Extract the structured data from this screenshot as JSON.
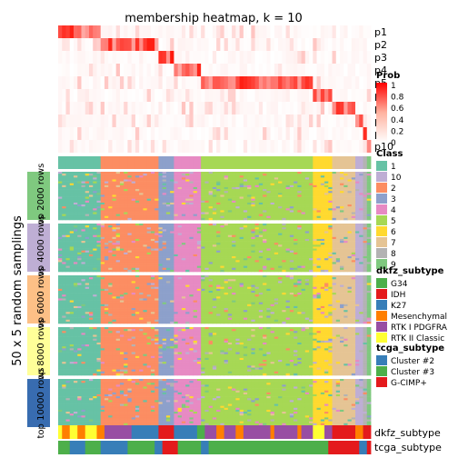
{
  "chart_data": {
    "type": "heatmap",
    "title": "membership heatmap, k = 10",
    "ylabel": "50 x 5 random samplings",
    "membership_rows": [
      "p1",
      "p2",
      "p3",
      "p4",
      "p5",
      "p6",
      "p7",
      "p8",
      "p9",
      "p10"
    ],
    "row_groups": [
      "top 2000 rows",
      "top 4000 rows",
      "top 6000 rows",
      "top 8000 rows",
      "top 10000 rows"
    ],
    "row_group_colors": [
      "#7fc97f",
      "#beaed4",
      "#fdc086",
      "#ffff99",
      "#386cb0"
    ],
    "annotation_rows": [
      "dkfz_subtype",
      "tcga_subtype"
    ],
    "legends": {
      "prob": {
        "title": "Prob",
        "ticks": [
          "1",
          "0.8",
          "0.6",
          "0.4",
          "0.2",
          "0"
        ],
        "color_low": "#ffffff",
        "color_high": "#ff0000"
      },
      "class": {
        "title": "Class",
        "items": [
          {
            "label": "1",
            "color": "#66c2a5"
          },
          {
            "label": "10",
            "color": "#beaed4"
          },
          {
            "label": "2",
            "color": "#fc8d62"
          },
          {
            "label": "3",
            "color": "#8da0cb"
          },
          {
            "label": "4",
            "color": "#e78ac3"
          },
          {
            "label": "5",
            "color": "#a6d854"
          },
          {
            "label": "6",
            "color": "#ffd92f"
          },
          {
            "label": "7",
            "color": "#e5c494"
          },
          {
            "label": "8",
            "color": "#b3b3b3"
          },
          {
            "label": "9",
            "color": "#7fc97f"
          }
        ]
      },
      "dkfz_subtype": {
        "title": "dkfz_subtype",
        "items": [
          {
            "label": "G34",
            "color": "#4daf4a"
          },
          {
            "label": "IDH",
            "color": "#e41a1c"
          },
          {
            "label": "K27",
            "color": "#377eb8"
          },
          {
            "label": "Mesenchymal",
            "color": "#ff7f00"
          },
          {
            "label": "RTK I PDGFRA",
            "color": "#984ea3"
          },
          {
            "label": "RTK II Classic",
            "color": "#ffff33"
          }
        ]
      },
      "tcga_subtype": {
        "title": "tcga_subtype",
        "items": [
          {
            "label": "Cluster #2",
            "color": "#377eb8"
          },
          {
            "label": "Cluster #3",
            "color": "#4daf4a"
          },
          {
            "label": "G-CIMP+",
            "color": "#e41a1c"
          }
        ]
      }
    },
    "column_classes": [
      {
        "class": "1",
        "n": 11
      },
      {
        "class": "2",
        "n": 15
      },
      {
        "class": "3",
        "n": 4
      },
      {
        "class": "4",
        "n": 7
      },
      {
        "class": "5",
        "n": 29
      },
      {
        "class": "6",
        "n": 5
      },
      {
        "class": "7",
        "n": 6
      },
      {
        "class": "10",
        "n": 2
      },
      {
        "class": "8",
        "n": 1
      },
      {
        "class": "9",
        "n": 1
      }
    ],
    "membership_peak_by_class": [
      "p1",
      "p2",
      "p3",
      "p4",
      "p5",
      "p6",
      "p7",
      "p8",
      "p9",
      "p10"
    ],
    "dkfz_blocks": [
      {
        "subtype": "RTK II Classic",
        "n": 1
      },
      {
        "subtype": "Mesenchymal",
        "n": 2
      },
      {
        "subtype": "RTK II Classic",
        "n": 2
      },
      {
        "subtype": "Mesenchymal",
        "n": 2
      },
      {
        "subtype": "RTK II Classic",
        "n": 3
      },
      {
        "subtype": "Mesenchymal",
        "n": 2
      },
      {
        "subtype": "RTK I PDGFRA",
        "n": 7
      },
      {
        "subtype": "K27",
        "n": 7
      },
      {
        "subtype": "IDH",
        "n": 4
      },
      {
        "subtype": "K27",
        "n": 6
      },
      {
        "subtype": "G34",
        "n": 2
      },
      {
        "subtype": "RTK I PDGFRA",
        "n": 3
      },
      {
        "subtype": "Mesenchymal",
        "n": 2
      },
      {
        "subtype": "RTK I PDGFRA",
        "n": 3
      },
      {
        "subtype": "Mesenchymal",
        "n": 2
      },
      {
        "subtype": "RTK I PDGFRA",
        "n": 7
      },
      {
        "subtype": "Mesenchymal",
        "n": 1
      },
      {
        "subtype": "RTK I PDGFRA",
        "n": 6
      },
      {
        "subtype": "Mesenchymal",
        "n": 1
      },
      {
        "subtype": "RTK I PDGFRA",
        "n": 3
      },
      {
        "subtype": "RTK II Classic",
        "n": 3
      },
      {
        "subtype": "RTK I PDGFRA",
        "n": 2
      },
      {
        "subtype": "IDH",
        "n": 6
      },
      {
        "subtype": "Mesenchymal",
        "n": 2
      },
      {
        "subtype": "IDH",
        "n": 2
      }
    ],
    "tcga_blocks": [
      {
        "subtype": "Cluster #3",
        "n": 3
      },
      {
        "subtype": "Cluster #2",
        "n": 4
      },
      {
        "subtype": "Cluster #3",
        "n": 4
      },
      {
        "subtype": "Cluster #2",
        "n": 7
      },
      {
        "subtype": "Cluster #3",
        "n": 7
      },
      {
        "subtype": "Cluster #2",
        "n": 2
      },
      {
        "subtype": "G-CIMP+",
        "n": 4
      },
      {
        "subtype": "Cluster #3",
        "n": 6
      },
      {
        "subtype": "Cluster #2",
        "n": 2
      },
      {
        "subtype": "Cluster #3",
        "n": 31
      },
      {
        "subtype": "G-CIMP+",
        "n": 8
      },
      {
        "subtype": "Cluster #2",
        "n": 2
      },
      {
        "subtype": "G-CIMP+",
        "n": 1
      }
    ]
  }
}
